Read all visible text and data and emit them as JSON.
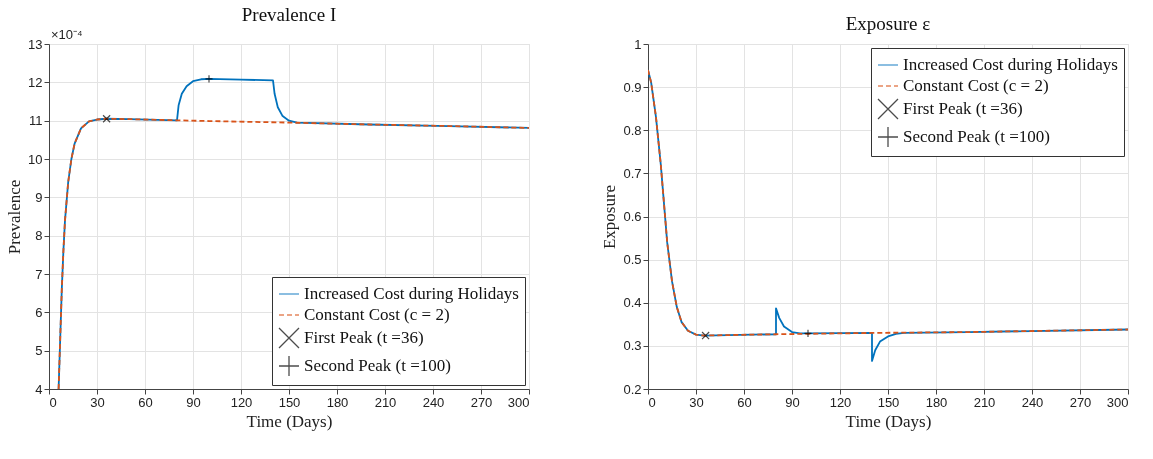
{
  "chart_data": [
    {
      "type": "line",
      "title": "Prevalence I",
      "xlabel": "Time (Days)",
      "ylabel": "Prevalence",
      "annotations": [
        "×10⁻⁴"
      ],
      "xlim": [
        0,
        300
      ],
      "xticks": [
        0,
        30,
        60,
        90,
        120,
        150,
        180,
        210,
        240,
        270,
        300
      ],
      "ylim": [
        4,
        13
      ],
      "yticks": [
        4,
        5,
        6,
        7,
        8,
        9,
        10,
        11,
        12,
        13
      ],
      "grid": true,
      "legend": "bottom right",
      "series": [
        {
          "name": "Increased Cost during Holidays",
          "color": "#0072bd",
          "line_style": "solid",
          "x": [
            6,
            7,
            8,
            9,
            10,
            12,
            14,
            16,
            20,
            25,
            30,
            36,
            50,
            80,
            81,
            83,
            86,
            90,
            95,
            100,
            120,
            140,
            141,
            143,
            146,
            150,
            155,
            200,
            250,
            300
          ],
          "values": [
            4,
            5.3,
            6.6,
            7.6,
            8.4,
            9.4,
            10.0,
            10.4,
            10.8,
            10.98,
            11.03,
            11.05,
            11.04,
            11.01,
            11.4,
            11.7,
            11.9,
            12.03,
            12.08,
            12.09,
            12.07,
            12.05,
            11.7,
            11.35,
            11.12,
            11.0,
            10.95,
            10.9,
            10.86,
            10.81
          ]
        },
        {
          "name": "Constant Cost (c = 2)",
          "color": "#d95319",
          "line_style": "dashed",
          "x": [
            6,
            7,
            8,
            9,
            10,
            12,
            14,
            16,
            20,
            25,
            30,
            36,
            50,
            80,
            100,
            150,
            200,
            250,
            300
          ],
          "values": [
            4,
            5.3,
            6.6,
            7.6,
            8.4,
            9.4,
            10.0,
            10.4,
            10.8,
            10.98,
            11.03,
            11.05,
            11.04,
            11.01,
            10.99,
            10.95,
            10.9,
            10.86,
            10.81
          ]
        },
        {
          "name": "First Peak (t =36)",
          "type": "scatter",
          "marker": "cross",
          "color": "#000000",
          "x": [
            36
          ],
          "values": [
            11.05
          ]
        },
        {
          "name": "Second Peak (t =100)",
          "type": "scatter",
          "marker": "plus",
          "color": "#000000",
          "x": [
            100
          ],
          "values": [
            12.09
          ]
        }
      ]
    },
    {
      "type": "line",
      "title": "Exposure ε",
      "xlabel": "Time (Days)",
      "ylabel": "Exposure",
      "xlim": [
        0,
        300
      ],
      "xticks": [
        0,
        30,
        60,
        90,
        120,
        150,
        180,
        210,
        240,
        270,
        300
      ],
      "ylim": [
        0.2,
        1
      ],
      "yticks": [
        0.2,
        0.3,
        0.4,
        0.5,
        0.6,
        0.7,
        0.8,
        0.9,
        1
      ],
      "grid": true,
      "legend": "top right",
      "series": [
        {
          "name": "Increased Cost during Holidays",
          "color": "#0072bd",
          "line_style": "solid",
          "x": [
            0,
            2,
            5,
            8,
            10,
            12,
            15,
            18,
            21,
            25,
            30,
            35,
            50,
            80,
            80,
            82,
            85,
            90,
            95,
            100,
            140,
            140,
            142,
            145,
            150,
            155,
            160,
            200,
            300
          ],
          "values": [
            0.94,
            0.91,
            0.83,
            0.72,
            0.63,
            0.54,
            0.45,
            0.39,
            0.355,
            0.335,
            0.326,
            0.324,
            0.325,
            0.327,
            0.387,
            0.365,
            0.345,
            0.332,
            0.329,
            0.329,
            0.33,
            0.265,
            0.29,
            0.31,
            0.322,
            0.328,
            0.33,
            0.332,
            0.338
          ]
        },
        {
          "name": "Constant Cost (c = 2)",
          "color": "#d95319",
          "line_style": "dashed",
          "x": [
            0,
            2,
            5,
            8,
            10,
            12,
            15,
            18,
            21,
            25,
            30,
            35,
            50,
            80,
            100,
            140,
            200,
            300
          ],
          "values": [
            0.94,
            0.91,
            0.83,
            0.72,
            0.63,
            0.54,
            0.45,
            0.39,
            0.355,
            0.335,
            0.326,
            0.324,
            0.325,
            0.327,
            0.328,
            0.33,
            0.332,
            0.338
          ]
        },
        {
          "name": "First Peak (t =36)",
          "type": "scatter",
          "marker": "cross",
          "color": "#000000",
          "x": [
            36
          ],
          "values": [
            0.324
          ]
        },
        {
          "name": "Second Peak (t =100)",
          "type": "scatter",
          "marker": "plus",
          "color": "#000000",
          "x": [
            100
          ],
          "values": [
            0.329
          ]
        }
      ]
    }
  ]
}
